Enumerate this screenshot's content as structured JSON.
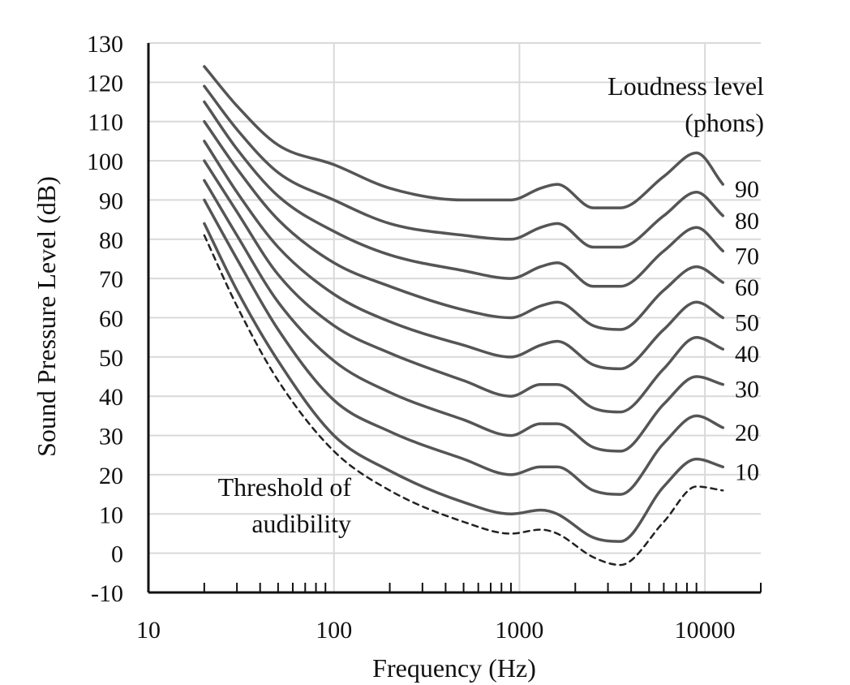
{
  "chart_data": {
    "type": "line",
    "xlabel": "Frequency (Hz)",
    "ylabel": "Sound Pressure Level (dB)",
    "x_scale": "log",
    "xlim": [
      10,
      20000
    ],
    "ylim": [
      -10,
      130
    ],
    "x_ticks": [
      "10",
      "100",
      "1000",
      "10000"
    ],
    "x_tick_values": [
      10,
      100,
      1000,
      10000
    ],
    "y_ticks": [
      "130",
      "120",
      "110",
      "100",
      "90",
      "80",
      "70",
      "60",
      "50",
      "40",
      "30",
      "20",
      "10",
      "0",
      "-10"
    ],
    "y_tick_values": [
      130,
      120,
      110,
      100,
      90,
      80,
      70,
      60,
      50,
      40,
      30,
      20,
      10,
      0,
      -10
    ],
    "grid": "horizontal and vertical major",
    "legend_title": [
      "Loudness level",
      "(phons)"
    ],
    "annotation": [
      "Threshold of",
      "audibility"
    ],
    "x": [
      20,
      30,
      50,
      100,
      200,
      500,
      900,
      1300,
      1600,
      2500,
      3500,
      6000,
      9000,
      12500
    ],
    "series": [
      {
        "name": "90",
        "values": [
          124,
          114,
          104,
          99,
          93,
          90,
          90,
          93,
          94,
          88,
          88,
          96,
          102,
          94
        ]
      },
      {
        "name": "80",
        "values": [
          119,
          108,
          97,
          90,
          84,
          81,
          80,
          83,
          84,
          78,
          78,
          86,
          92,
          86
        ]
      },
      {
        "name": "70",
        "values": [
          115,
          103,
          91,
          82,
          76,
          72,
          70,
          73,
          74,
          68,
          68,
          77,
          83,
          77
        ]
      },
      {
        "name": "60",
        "values": [
          110,
          98,
          85,
          74,
          68,
          62,
          60,
          63,
          64,
          58,
          57,
          67,
          73,
          69
        ]
      },
      {
        "name": "50",
        "values": [
          105,
          92,
          78,
          66,
          59,
          53,
          50,
          53,
          54,
          48,
          47,
          57,
          64,
          60
        ]
      },
      {
        "name": "40",
        "values": [
          100,
          87,
          71,
          58,
          51,
          44,
          40,
          43,
          43,
          37,
          36,
          47,
          55,
          52
        ]
      },
      {
        "name": "30",
        "values": [
          95,
          81,
          64,
          49,
          41,
          34,
          30,
          33,
          33,
          27,
          26,
          38,
          45,
          43
        ]
      },
      {
        "name": "20",
        "values": [
          90,
          75,
          57,
          39,
          31,
          24,
          20,
          22,
          22,
          16,
          15,
          28,
          35,
          32
        ]
      },
      {
        "name": "10",
        "values": [
          84,
          67,
          49,
          30,
          21,
          13,
          10,
          11,
          10,
          4,
          3,
          17,
          24,
          22
        ]
      },
      {
        "name": "Threshold of audibility",
        "style": "dashed",
        "values": [
          81,
          63,
          44,
          26,
          16,
          8,
          5,
          6,
          5,
          -1,
          -3,
          8,
          17,
          16
        ]
      }
    ]
  }
}
